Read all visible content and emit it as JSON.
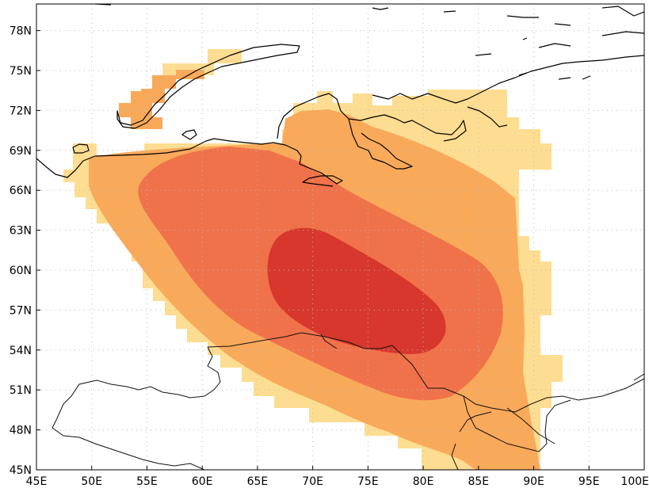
{
  "map": {
    "lon_range": [
      45,
      100
    ],
    "lat_range": [
      45,
      80
    ],
    "x_ticks": [
      "45E",
      "50E",
      "55E",
      "60E",
      "65E",
      "70E",
      "75E",
      "80E",
      "85E",
      "90E",
      "95E",
      "100E"
    ],
    "y_ticks": [
      "45N",
      "48N",
      "51N",
      "54N",
      "57N",
      "60N",
      "63N",
      "66N",
      "69N",
      "72N",
      "75N",
      "78N"
    ],
    "grid": "dotted",
    "colors": {
      "level_1": "#fddd91",
      "level_2": "#f9a95a",
      "level_3": "#f0724a",
      "level_4": "#d7372c",
      "coastline": "#000000"
    }
  }
}
